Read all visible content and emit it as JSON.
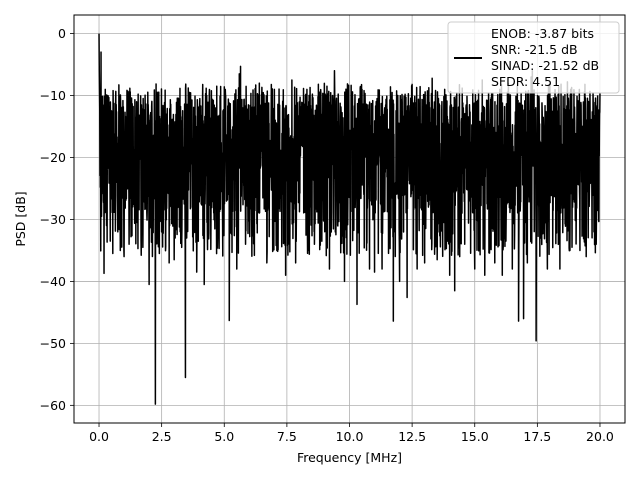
{
  "chart_data": {
    "type": "line",
    "title": "",
    "xlabel": "Frequency [MHz]",
    "ylabel": "PSD [dB]",
    "xlim": [
      -0.999,
      20.999
    ],
    "ylim": [
      -62.85,
      3.0
    ],
    "xticks": [
      0.0,
      2.5,
      5.0,
      7.5,
      10.0,
      12.5,
      15.0,
      17.5,
      20.0
    ],
    "xtick_labels": [
      "0.0",
      "2.5",
      "5.0",
      "7.5",
      "10.0",
      "12.5",
      "15.0",
      "17.5",
      "20.0"
    ],
    "yticks": [
      0,
      -10,
      -20,
      -30,
      -40,
      -50,
      -60
    ],
    "ytick_labels": [
      "0",
      "−10",
      "−20",
      "−30",
      "−40",
      "−50",
      "−60"
    ],
    "grid": true,
    "legend_position": "top-right",
    "legend_lines": [
      "ENOB: -3.87 bits",
      "SNR: -21.5 dB",
      "SINAD: -21.52 dB",
      "SFDR: 4.51"
    ],
    "series": [
      {
        "color": "#000000",
        "x_range": [
          0.0,
          20.0
        ],
        "noise_band": [
          -29,
          -9
        ],
        "points": [
          [
            0.0,
            0.0
          ],
          [
            0.02,
            -6.0
          ],
          [
            0.05,
            -12.0
          ],
          [
            0.08,
            -3.0
          ],
          [
            0.1,
            -29.5
          ],
          [
            0.15,
            -22.0
          ],
          [
            0.2,
            -38.7
          ],
          [
            0.3,
            -31.0
          ],
          [
            0.45,
            -33.5
          ],
          [
            0.55,
            -35.5
          ],
          [
            0.75,
            -32.0
          ],
          [
            0.85,
            -35.0
          ],
          [
            1.0,
            -36.0
          ],
          [
            1.2,
            -34.0
          ],
          [
            1.5,
            -36.0
          ],
          [
            1.75,
            -34.5
          ],
          [
            2.0,
            -40.5
          ],
          [
            2.25,
            -59.8
          ],
          [
            2.5,
            -32.0
          ],
          [
            2.8,
            -37.0
          ],
          [
            3.0,
            -36.5
          ],
          [
            3.3,
            -34.5
          ],
          [
            3.45,
            -55.5
          ],
          [
            3.5,
            -33.0
          ],
          [
            3.9,
            -38.5
          ],
          [
            4.2,
            -40.5
          ],
          [
            4.7,
            -33.5
          ],
          [
            5.2,
            -46.3
          ],
          [
            5.5,
            -38.0
          ],
          [
            5.85,
            -34.0
          ],
          [
            6.4,
            -38.0
          ],
          [
            6.7,
            -37.0
          ],
          [
            7.1,
            -35.0
          ],
          [
            7.45,
            -39.0
          ],
          [
            7.85,
            -37.0
          ],
          [
            8.35,
            -35.0
          ],
          [
            8.6,
            -34.0
          ],
          [
            9.2,
            -38.0
          ],
          [
            9.8,
            -40.0
          ],
          [
            10.3,
            -43.7
          ],
          [
            10.8,
            -38.0
          ],
          [
            11.0,
            -38.5
          ],
          [
            11.3,
            -38.0
          ],
          [
            11.75,
            -46.4
          ],
          [
            12.0,
            -40.0
          ],
          [
            12.3,
            -42.6
          ],
          [
            12.7,
            -38.0
          ],
          [
            13.0,
            -37.0
          ],
          [
            13.5,
            -36.5
          ],
          [
            14.0,
            -39.0
          ],
          [
            14.2,
            -41.5
          ],
          [
            14.4,
            -36.0
          ],
          [
            14.6,
            -34.0
          ],
          [
            15.0,
            -38.0
          ],
          [
            15.4,
            -39.0
          ],
          [
            15.8,
            -37.0
          ],
          [
            16.1,
            -39.0
          ],
          [
            16.5,
            -38.0
          ],
          [
            16.75,
            -46.4
          ],
          [
            16.95,
            -46.0
          ],
          [
            17.1,
            -37.0
          ],
          [
            17.45,
            -49.6
          ],
          [
            17.9,
            -38.0
          ],
          [
            18.0,
            -36.5
          ],
          [
            18.4,
            -38.0
          ],
          [
            18.8,
            -35.0
          ],
          [
            19.2,
            -35.0
          ],
          [
            19.45,
            -36.0
          ],
          [
            19.85,
            -34.0
          ],
          [
            20.0,
            -30.0
          ],
          [
            0.25,
            -9.0
          ],
          [
            0.9,
            -12.0
          ],
          [
            1.5,
            -11.0
          ],
          [
            2.35,
            -10.0
          ],
          [
            3.2,
            -11.0
          ],
          [
            4.3,
            -10.0
          ],
          [
            4.7,
            -8.5
          ],
          [
            5.05,
            -10.0
          ],
          [
            5.6,
            -6.5
          ],
          [
            5.65,
            -5.3
          ],
          [
            6.4,
            -8.0
          ],
          [
            7.0,
            -9.0
          ],
          [
            7.7,
            -7.5
          ],
          [
            8.3,
            -9.0
          ],
          [
            9.1,
            -8.5
          ],
          [
            9.4,
            -6.0
          ],
          [
            9.9,
            -9.0
          ],
          [
            10.5,
            -9.0
          ],
          [
            11.1,
            -10.5
          ],
          [
            11.7,
            -9.5
          ],
          [
            12.5,
            -8.2
          ],
          [
            13.3,
            -7.2
          ],
          [
            13.8,
            -9.0
          ],
          [
            14.5,
            -8.8
          ],
          [
            15.3,
            -7.5
          ],
          [
            16.0,
            -9.0
          ],
          [
            16.7,
            -8.5
          ],
          [
            17.25,
            -7.0
          ],
          [
            17.3,
            -6.0
          ],
          [
            18.0,
            -8.0
          ],
          [
            18.7,
            -7.8
          ],
          [
            19.4,
            -8.2
          ],
          [
            20.0,
            -9.5
          ]
        ]
      }
    ]
  }
}
